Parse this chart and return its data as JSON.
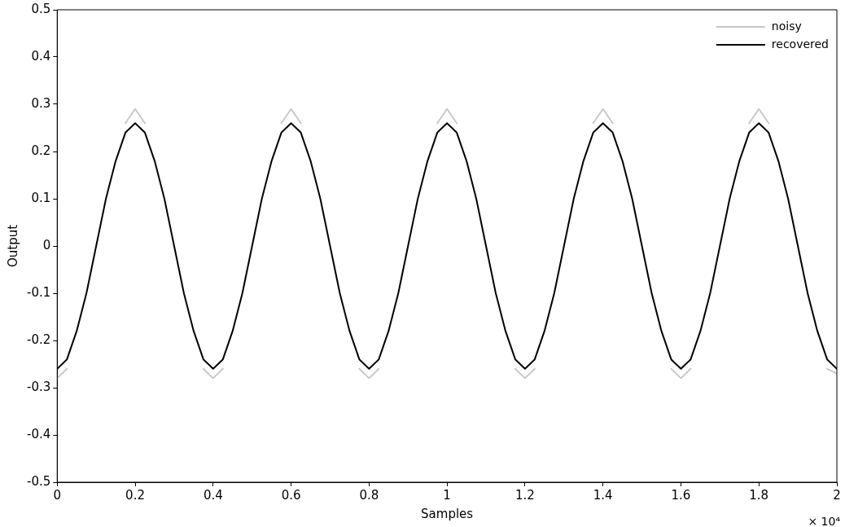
{
  "chart_data": {
    "type": "line",
    "xlabel": "Samples",
    "ylabel": "Output",
    "annotations": [
      "× 10⁴"
    ],
    "x": [
      0,
      0.025,
      0.05,
      0.075,
      0.1,
      0.125,
      0.15,
      0.175,
      0.2,
      0.225,
      0.25,
      0.275,
      0.3,
      0.325,
      0.35,
      0.375,
      0.4,
      0.425,
      0.45,
      0.475,
      0.5,
      0.525,
      0.55,
      0.575,
      0.6,
      0.625,
      0.65,
      0.675,
      0.7,
      0.725,
      0.75,
      0.775,
      0.8,
      0.825,
      0.85,
      0.875,
      0.9,
      0.925,
      0.95,
      0.975,
      1,
      1.025,
      1.05,
      1.075,
      1.1,
      1.125,
      1.15,
      1.175,
      1.2,
      1.225,
      1.25,
      1.275,
      1.3,
      1.325,
      1.35,
      1.375,
      1.4,
      1.425,
      1.45,
      1.475,
      1.5,
      1.525,
      1.55,
      1.575,
      1.6,
      1.625,
      1.65,
      1.675,
      1.7,
      1.725,
      1.75,
      1.775,
      1.8,
      1.825,
      1.85,
      1.875,
      1.9,
      1.925,
      1.95,
      1.975,
      2
    ],
    "series": [
      {
        "name": "noisy",
        "color": "#c8c8c8",
        "values": [
          -0.28,
          -0.26,
          null,
          null,
          null,
          null,
          null,
          0.26,
          0.29,
          0.26,
          null,
          null,
          null,
          null,
          null,
          -0.26,
          -0.28,
          -0.26,
          null,
          null,
          null,
          null,
          null,
          0.26,
          0.29,
          0.26,
          null,
          null,
          null,
          null,
          null,
          -0.26,
          -0.28,
          -0.26,
          null,
          null,
          null,
          null,
          null,
          0.26,
          0.29,
          0.26,
          null,
          null,
          null,
          null,
          null,
          -0.26,
          -0.28,
          -0.26,
          null,
          null,
          null,
          null,
          null,
          0.26,
          0.29,
          0.26,
          null,
          null,
          null,
          null,
          null,
          -0.26,
          -0.28,
          -0.26,
          null,
          null,
          null,
          null,
          null,
          0.26,
          0.29,
          0.26,
          null,
          null,
          null,
          null,
          null,
          -0.26,
          -0.27
        ]
      },
      {
        "name": "recovered",
        "color": "#000000",
        "values": [
          -0.26,
          -0.24,
          -0.18,
          -0.1,
          0,
          0.1,
          0.18,
          0.24,
          0.26,
          0.24,
          0.18,
          0.1,
          0,
          -0.1,
          -0.18,
          -0.24,
          -0.26,
          -0.24,
          -0.18,
          -0.1,
          0,
          0.1,
          0.18,
          0.24,
          0.26,
          0.24,
          0.18,
          0.1,
          0,
          -0.1,
          -0.18,
          -0.24,
          -0.26,
          -0.24,
          -0.18,
          -0.1,
          0,
          0.1,
          0.18,
          0.24,
          0.26,
          0.24,
          0.18,
          0.1,
          0,
          -0.1,
          -0.18,
          -0.24,
          -0.26,
          -0.24,
          -0.18,
          -0.1,
          0,
          0.1,
          0.18,
          0.24,
          0.26,
          0.24,
          0.18,
          0.1,
          0,
          -0.1,
          -0.18,
          -0.24,
          -0.26,
          -0.24,
          -0.18,
          -0.1,
          0,
          0.1,
          0.18,
          0.24,
          0.26,
          0.24,
          0.18,
          0.1,
          0,
          -0.1,
          -0.18,
          -0.24,
          -0.26
        ]
      }
    ],
    "xlim": [
      0,
      2
    ],
    "xticks": [
      0,
      0.2,
      0.4,
      0.6,
      0.8,
      1,
      1.2,
      1.4,
      1.6,
      1.8,
      2
    ],
    "ylim": [
      -0.5,
      0.5
    ],
    "yticks": [
      -0.5,
      -0.4,
      -0.3,
      -0.2,
      -0.1,
      0,
      0.1,
      0.2,
      0.3,
      0.4,
      0.5
    ],
    "legend": "top right",
    "marker": "none",
    "line_style": "solid"
  }
}
